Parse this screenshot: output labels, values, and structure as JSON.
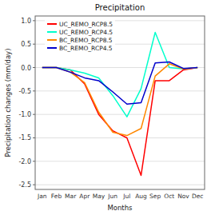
{
  "chart_data": {
    "type": "line",
    "title": "Precipitation",
    "xlabel": "Months",
    "ylabel": "Precipitation changes (mm/day)",
    "categories": [
      "Jan",
      "Feb",
      "Mar",
      "Apr",
      "May",
      "Jun",
      "Jul",
      "Aug",
      "Sep",
      "Oct",
      "Nov",
      "Dec"
    ],
    "series": [
      {
        "name": "UC_REMO_RCP8.5",
        "color": "#ff0000",
        "values": [
          0.0,
          0.0,
          -0.05,
          -0.35,
          -1.0,
          -1.35,
          -1.5,
          -2.3,
          -0.28,
          -0.28,
          -0.05,
          0.0
        ]
      },
      {
        "name": "UC_REMO_RCP4.5",
        "color": "#00ffcc",
        "values": [
          0.0,
          0.0,
          -0.05,
          -0.12,
          -0.22,
          -0.6,
          -1.05,
          -0.45,
          0.75,
          0.0,
          -0.03,
          0.0
        ]
      },
      {
        "name": "BC_REMO_RCP8.5",
        "color": "#ff8800",
        "values": [
          0.0,
          0.0,
          -0.1,
          -0.32,
          -0.95,
          -1.38,
          -1.45,
          -1.3,
          -0.18,
          0.08,
          -0.03,
          0.0
        ]
      },
      {
        "name": "BC_REMO_RCP4.5",
        "color": "#0000cc",
        "values": [
          0.0,
          0.0,
          -0.1,
          -0.22,
          -0.28,
          -0.52,
          -0.78,
          -0.75,
          0.1,
          0.12,
          -0.02,
          0.0
        ]
      }
    ],
    "ylim": [
      -2.6,
      1.1
    ],
    "yticks": [
      -2.5,
      {
        "value": -2,
        "label": "-2.0"
      },
      -1.5,
      {
        "value": -1,
        "label": "-1.0"
      },
      -0.5,
      {
        "value": 0,
        "label": "0.0"
      },
      0.5,
      {
        "value": 1,
        "label": "1.0"
      }
    ],
    "grid": true,
    "legend": "upper left"
  }
}
